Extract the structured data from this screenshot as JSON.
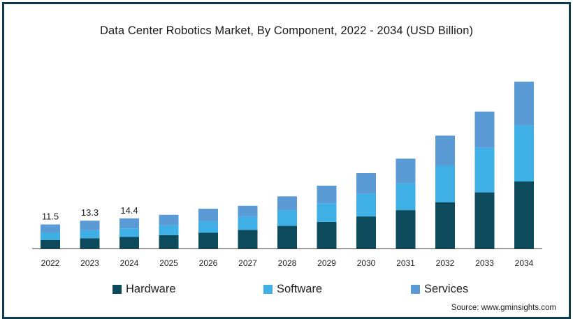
{
  "chart_data": {
    "type": "bar",
    "stacked": true,
    "title": "Data Center Robotics Market, By Component, 2022 - 2034 (USD Billion)",
    "xlabel": "",
    "ylabel": "",
    "categories": [
      "2022",
      "2023",
      "2024",
      "2025",
      "2026",
      "2027",
      "2028",
      "2029",
      "2030",
      "2031",
      "2032",
      "2033",
      "2034"
    ],
    "series": [
      {
        "name": "Hardware",
        "color": "#0d4a5c",
        "values": [
          4.1,
          4.9,
          5.5,
          6.4,
          7.5,
          8.9,
          10.8,
          12.7,
          15.3,
          18.3,
          22.1,
          26.8,
          32.0
        ]
      },
      {
        "name": "Software",
        "color": "#3fb0e6",
        "values": [
          3.4,
          3.8,
          4.1,
          4.7,
          5.3,
          6.3,
          7.4,
          8.9,
          10.8,
          12.8,
          17.4,
          21.3,
          26.8
        ]
      },
      {
        "name": "Services",
        "color": "#5b9bd5",
        "values": [
          4.0,
          4.6,
          4.8,
          5.0,
          6.2,
          5.2,
          6.7,
          8.4,
          9.9,
          11.8,
          14.4,
          17.3,
          20.9
        ]
      }
    ],
    "totals": [
      11.5,
      13.3,
      14.4,
      16.1,
      19.0,
      20.4,
      24.9,
      30.0,
      36.0,
      42.9,
      53.9,
      65.4,
      79.7
    ],
    "data_labels": {
      "2022": "11.5",
      "2023": "13.3",
      "2024": "14.4"
    },
    "ylim": [
      0,
      80
    ],
    "grid": false,
    "legend": "bottom"
  },
  "legend": {
    "hardware": "Hardware",
    "software": "Software",
    "services": "Services"
  },
  "source": "Source: www.gminsights.com"
}
